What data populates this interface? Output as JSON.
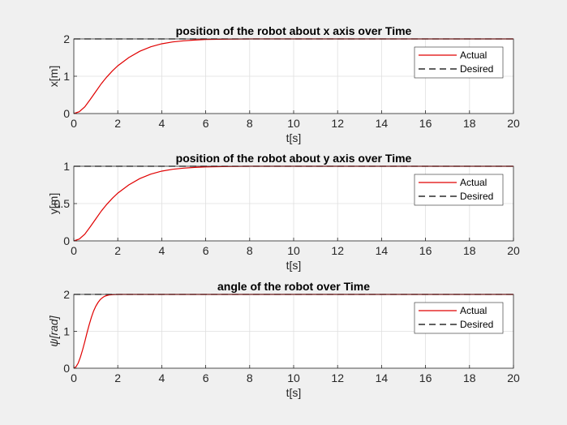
{
  "figure": {
    "background": "#f0f0f0",
    "axes_background": "#ffffff",
    "grid_color": "#dfdfdf",
    "actual_color": "#e00000",
    "desired_color": "#000000"
  },
  "chart_data": [
    {
      "type": "line",
      "title": "position of the robot about x axis over Time",
      "xlabel": "t[s]",
      "ylabel": "x[m]",
      "xlim": [
        0,
        20
      ],
      "ylim": [
        0,
        2
      ],
      "xticks": [
        "0",
        "2",
        "4",
        "6",
        "8",
        "10",
        "12",
        "14",
        "16",
        "18",
        "20"
      ],
      "yticks": [
        "0",
        "1",
        "2"
      ],
      "grid": true,
      "legend": "top-right",
      "series": [
        {
          "name": "Actual",
          "style": "solid",
          "color": "#e00000",
          "x": [
            0,
            0.25,
            0.5,
            0.75,
            1,
            1.25,
            1.5,
            1.75,
            2,
            2.5,
            3,
            3.5,
            4,
            4.5,
            5,
            5.5,
            6,
            7,
            8,
            20
          ],
          "y": [
            0,
            0.05,
            0.18,
            0.38,
            0.59,
            0.8,
            0.98,
            1.14,
            1.28,
            1.5,
            1.67,
            1.79,
            1.87,
            1.92,
            1.95,
            1.97,
            1.985,
            1.995,
            2,
            2
          ]
        },
        {
          "name": "Desired",
          "style": "dashed",
          "color": "#000000",
          "x": [
            0,
            20
          ],
          "y": [
            2,
            2
          ]
        }
      ]
    },
    {
      "type": "line",
      "title": "position of the robot about y axis over Time",
      "xlabel": "t[s]",
      "ylabel": "y[m]",
      "xlim": [
        0,
        20
      ],
      "ylim": [
        0,
        1
      ],
      "xticks": [
        "0",
        "2",
        "4",
        "6",
        "8",
        "10",
        "12",
        "14",
        "16",
        "18",
        "20"
      ],
      "yticks": [
        "0",
        "0.5",
        "1"
      ],
      "grid": true,
      "legend": "top-right",
      "series": [
        {
          "name": "Actual",
          "style": "solid",
          "color": "#e00000",
          "x": [
            0,
            0.25,
            0.5,
            0.75,
            1,
            1.25,
            1.5,
            1.75,
            2,
            2.5,
            3,
            3.5,
            4,
            4.5,
            5,
            5.5,
            6,
            7,
            8,
            20
          ],
          "y": [
            0,
            0.025,
            0.09,
            0.19,
            0.295,
            0.4,
            0.49,
            0.57,
            0.64,
            0.75,
            0.835,
            0.895,
            0.935,
            0.96,
            0.975,
            0.985,
            0.992,
            0.997,
            1,
            1
          ]
        },
        {
          "name": "Desired",
          "style": "dashed",
          "color": "#000000",
          "x": [
            0,
            20
          ],
          "y": [
            1,
            1
          ]
        }
      ]
    },
    {
      "type": "line",
      "title": "angle of the robot over Time",
      "xlabel": "t[s]",
      "ylabel": "ψ[rad]",
      "xlim": [
        0,
        20
      ],
      "ylim": [
        0,
        2
      ],
      "xticks": [
        "0",
        "2",
        "4",
        "6",
        "8",
        "10",
        "12",
        "14",
        "16",
        "18",
        "20"
      ],
      "yticks": [
        "0",
        "1",
        "2"
      ],
      "grid": true,
      "legend": "top-right",
      "series": [
        {
          "name": "Actual",
          "style": "solid",
          "color": "#e00000",
          "x": [
            0,
            0.1,
            0.2,
            0.3,
            0.4,
            0.5,
            0.6,
            0.7,
            0.8,
            0.9,
            1,
            1.1,
            1.2,
            1.3,
            1.4,
            1.5,
            1.6,
            1.8,
            2,
            2.5,
            3,
            20
          ],
          "y": [
            0,
            0.04,
            0.14,
            0.3,
            0.5,
            0.72,
            0.96,
            1.18,
            1.38,
            1.55,
            1.68,
            1.78,
            1.86,
            1.91,
            1.95,
            1.97,
            1.985,
            1.995,
            2,
            2,
            2,
            2
          ]
        },
        {
          "name": "Desired",
          "style": "dashed",
          "color": "#000000",
          "x": [
            0,
            20
          ],
          "y": [
            2,
            2
          ]
        }
      ]
    }
  ]
}
